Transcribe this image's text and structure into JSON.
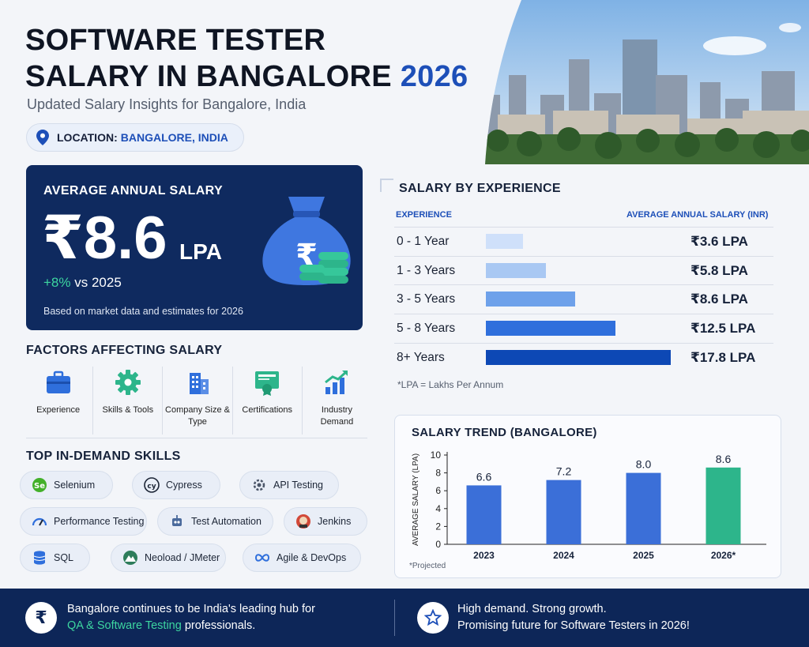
{
  "header": {
    "title_line1": "SOFTWARE TESTER",
    "title_line2": "SALARY IN BANGALORE",
    "title_year": "2026",
    "subtitle": "Updated Salary Insights for Bangalore, India",
    "location_label": "LOCATION:",
    "location_value": "BANGALORE, INDIA"
  },
  "average": {
    "label": "AVERAGE ANNUAL SALARY",
    "value": "₹8.6",
    "unit": "LPA",
    "change_pct": "+8%",
    "change_text": "vs 2025",
    "basis": "Based on market data and estimates for 2026",
    "rupee_symbol": "₹"
  },
  "factors": {
    "heading": "FACTORS AFFECTING SALARY",
    "items": [
      {
        "label": "Experience",
        "icon": "briefcase-icon"
      },
      {
        "label": "Skills & Tools",
        "icon": "gear-icon"
      },
      {
        "label": "Company Size & Type",
        "icon": "building-icon"
      },
      {
        "label": "Certifications",
        "icon": "certificate-icon"
      },
      {
        "label": "Industry Demand",
        "icon": "growth-chart-icon"
      }
    ]
  },
  "skills": {
    "heading": "TOP IN-DEMAND SKILLS",
    "items": [
      {
        "label": "Selenium",
        "icon": "selenium-icon"
      },
      {
        "label": "Cypress",
        "icon": "cypress-icon"
      },
      {
        "label": "API Testing",
        "icon": "api-gear-icon"
      },
      {
        "label": "Performance Testing",
        "icon": "gauge-icon"
      },
      {
        "label": "Test Automation",
        "icon": "robot-icon"
      },
      {
        "label": "Jenkins",
        "icon": "jenkins-icon"
      },
      {
        "label": "SQL",
        "icon": "database-icon"
      },
      {
        "label": "Neoload / JMeter",
        "icon": "mountain-icon"
      },
      {
        "label": "Agile & DevOps",
        "icon": "infinity-icon"
      }
    ]
  },
  "experience": {
    "heading": "SALARY BY EXPERIENCE",
    "col_experience": "EXPERIENCE",
    "col_salary": "AVERAGE ANNUAL SALARY (INR)",
    "rows": [
      {
        "label": "0 - 1 Year",
        "value": "₹3.6 LPA",
        "amount": 3.6,
        "color": "#cfe0fa"
      },
      {
        "label": "1 - 3 Years",
        "value": "₹5.8 LPA",
        "amount": 5.8,
        "color": "#a9c8f3"
      },
      {
        "label": "3 - 5 Years",
        "value": "₹8.6 LPA",
        "amount": 8.6,
        "color": "#6ea1ea"
      },
      {
        "label": "5 - 8 Years",
        "value": "₹12.5 LPA",
        "amount": 12.5,
        "color": "#2f6fdc"
      },
      {
        "label": "8+ Years",
        "value": "₹17.8 LPA",
        "amount": 17.8,
        "color": "#0d48b5"
      }
    ],
    "footnote": "*LPA = Lakhs Per Annum"
  },
  "trend": {
    "heading": "SALARY TREND (BANGALORE)",
    "footnote": "*Projected"
  },
  "chart_data": {
    "type": "bar",
    "title": "SALARY TREND (BANGALORE)",
    "categories": [
      "2023",
      "2024",
      "2025",
      "2026*"
    ],
    "values": [
      6.6,
      7.2,
      8.0,
      8.6
    ],
    "data_labels": [
      "6.6",
      "7.2",
      "8.0",
      "8.6"
    ],
    "ylabel": "AVERAGE SALARY (LPA)",
    "xlabel": "",
    "ylim": [
      0,
      10
    ],
    "yticks": [
      "0",
      "2",
      "4",
      "6",
      "8",
      "10"
    ],
    "bar_colors": [
      "#3b6fd8",
      "#3b6fd8",
      "#3b6fd8",
      "#2db58b"
    ],
    "grid": false
  },
  "footer": {
    "left_line1": "Bangalore continues to be India's leading hub for",
    "left_highlight": "QA & Software Testing",
    "left_rest": "professionals.",
    "right_line1": "High demand. Strong growth.",
    "right_line2": "Promising future for Software Testers in 2026!",
    "left_icon": "rupee-icon",
    "right_icon": "star-icon"
  },
  "colors": {
    "navy": "#0f2a5f",
    "accent_blue": "#1d4fb8",
    "green": "#3dd6a0"
  }
}
